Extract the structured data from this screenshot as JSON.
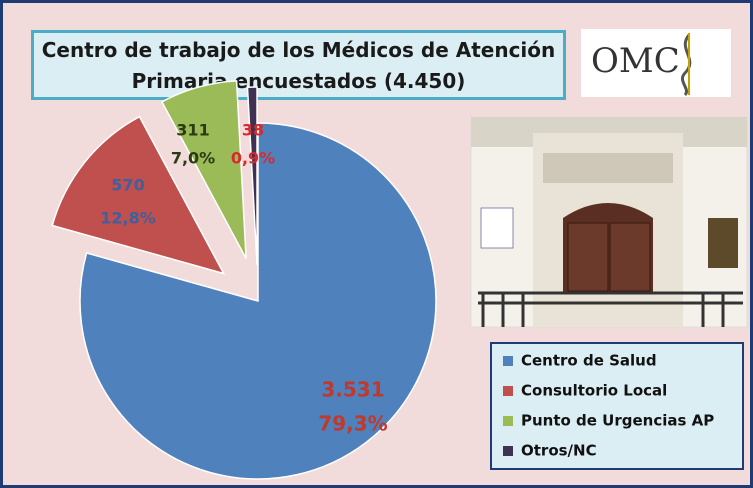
{
  "chart_data": {
    "type": "pie",
    "title": "Centro de trabajo de los Médicos de Atención Primaria encuestados (4.450)",
    "logo": "OMC",
    "categories": [
      "Centro de Salud",
      "Consultorio Local",
      "Punto de Urgencias AP",
      "Otros/NC"
    ],
    "values": [
      3531,
      570,
      311,
      38
    ],
    "value_labels": [
      "3.531",
      "570",
      "311",
      "38"
    ],
    "percents": [
      79.3,
      12.8,
      7.0,
      0.9
    ],
    "percent_labels": [
      "79,3%",
      "12,8%",
      "7,0%",
      "0,9%"
    ],
    "colors": [
      "#4f81bd",
      "#c0504d",
      "#9bbb59",
      "#403152"
    ],
    "label_colors": [
      "#c0392b",
      "#3f5f9f",
      "#2b3a14",
      "#d62b2b"
    ],
    "legend": "bottom-right"
  }
}
